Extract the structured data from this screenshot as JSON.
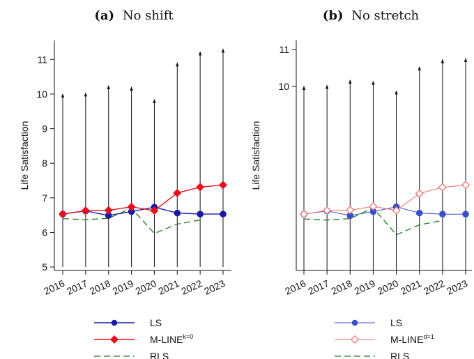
{
  "colors": {
    "ls_left": "#1a1aa6",
    "mline_left": "#e8101a",
    "rls": "#1e7a1e",
    "ls_right": "#3a4fc8",
    "mline_right": "#f06a6a",
    "axis": "#111111",
    "whisker": "#111111"
  },
  "chart_data": [
    {
      "type": "line",
      "panel_tag": "(a)",
      "title": "No shift",
      "ylabel": "Life Satisfaction",
      "ylim": [
        4.9,
        11.55
      ],
      "yticks": [
        5,
        6,
        7,
        8,
        9,
        10,
        11
      ],
      "categories": [
        "2016",
        "2017",
        "2018",
        "2019",
        "2020",
        "2021",
        "2022",
        "2023"
      ],
      "whisker_top": [
        10.0,
        10.03,
        10.24,
        10.2,
        9.84,
        10.9,
        11.22,
        11.3
      ],
      "whisker_bottom": 5.0,
      "series": [
        {
          "key": "ls",
          "name": "LS",
          "values": [
            6.53,
            6.62,
            6.49,
            6.6,
            6.73,
            6.56,
            6.53,
            6.53
          ]
        },
        {
          "key": "mline",
          "name": "M-LINE",
          "sup": "k=0",
          "values": [
            6.53,
            6.63,
            6.64,
            6.74,
            6.63,
            7.14,
            7.31,
            7.37
          ]
        },
        {
          "key": "rls",
          "name": "RLS",
          "sub": ". .",
          "values": [
            6.4,
            6.37,
            6.41,
            6.7,
            5.97,
            6.24,
            6.36,
            null
          ]
        }
      ],
      "legend_position": "bottom"
    },
    {
      "type": "line",
      "panel_tag": "(b)",
      "title": "No stretch",
      "ylabel": "Life Satisfaction",
      "ylim": [
        5.0,
        11.25
      ],
      "yticks": [
        10,
        11
      ],
      "categories": [
        "2016",
        "2017",
        "2018",
        "2019",
        "2020",
        "2021",
        "2022",
        "2023"
      ],
      "whisker_top": [
        10.0,
        10.03,
        10.17,
        10.14,
        9.88,
        10.53,
        10.73,
        10.76
      ],
      "whisker_bottom": 5.0,
      "series": [
        {
          "key": "ls",
          "name": "LS",
          "values": [
            6.53,
            6.62,
            6.49,
            6.6,
            6.73,
            6.56,
            6.53,
            6.53
          ]
        },
        {
          "key": "mline",
          "name": "M-LINE",
          "sup": "d=1",
          "values": [
            6.53,
            6.63,
            6.64,
            6.74,
            6.63,
            7.09,
            7.26,
            7.32
          ]
        },
        {
          "key": "rls",
          "name": "RLS",
          "sub": ". .",
          "values": [
            6.4,
            6.37,
            6.41,
            6.7,
            5.97,
            6.24,
            6.36,
            null
          ]
        }
      ],
      "legend_position": "bottom"
    }
  ]
}
